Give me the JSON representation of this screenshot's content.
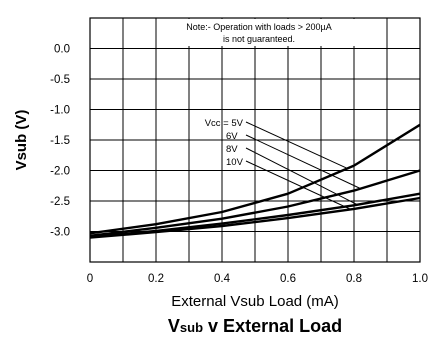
{
  "chart_data": {
    "type": "line",
    "title": {
      "main": "V",
      "sub": "sub",
      "rest": " v External Load"
    },
    "xlabel": "External Vsub Load (mA)",
    "ylabel": "Vsub (V)",
    "xlim": [
      0,
      1.0
    ],
    "ylim": [
      -3.5,
      0.5
    ],
    "x_ticks": [
      "0",
      "0.2",
      "0.4",
      "0.6",
      "0.8",
      "1.0"
    ],
    "x_tick_values": [
      0,
      0.2,
      0.4,
      0.6,
      0.8,
      1.0
    ],
    "y_ticks": [
      "0.0",
      "-0.5",
      "-1.0",
      "-1.5",
      "-2.0",
      "-2.5",
      "-3.0"
    ],
    "y_tick_values": [
      0.0,
      -0.5,
      -1.0,
      -1.5,
      -2.0,
      -2.5,
      -3.0
    ],
    "grid": true,
    "note": [
      "Note:- Operation with loads > 200µA",
      "is not guaranteed."
    ],
    "series": [
      {
        "name": "Vcc = 5V",
        "x": [
          0,
          0.2,
          0.4,
          0.6,
          0.8,
          1.0
        ],
        "values": [
          -3.03,
          -2.88,
          -2.68,
          -2.38,
          -1.92,
          -1.25
        ]
      },
      {
        "name": "6V",
        "x": [
          0,
          0.2,
          0.4,
          0.6,
          0.8,
          1.0
        ],
        "values": [
          -3.07,
          -2.94,
          -2.79,
          -2.59,
          -2.33,
          -2.0
        ]
      },
      {
        "name": "8V",
        "x": [
          0,
          0.2,
          0.4,
          0.6,
          0.8,
          1.0
        ],
        "values": [
          -3.09,
          -2.99,
          -2.87,
          -2.73,
          -2.57,
          -2.38
        ]
      },
      {
        "name": "10V",
        "x": [
          0,
          0.2,
          0.4,
          0.6,
          0.8,
          1.0
        ],
        "values": [
          -3.1,
          -3.01,
          -2.91,
          -2.78,
          -2.63,
          -2.45
        ]
      }
    ]
  }
}
